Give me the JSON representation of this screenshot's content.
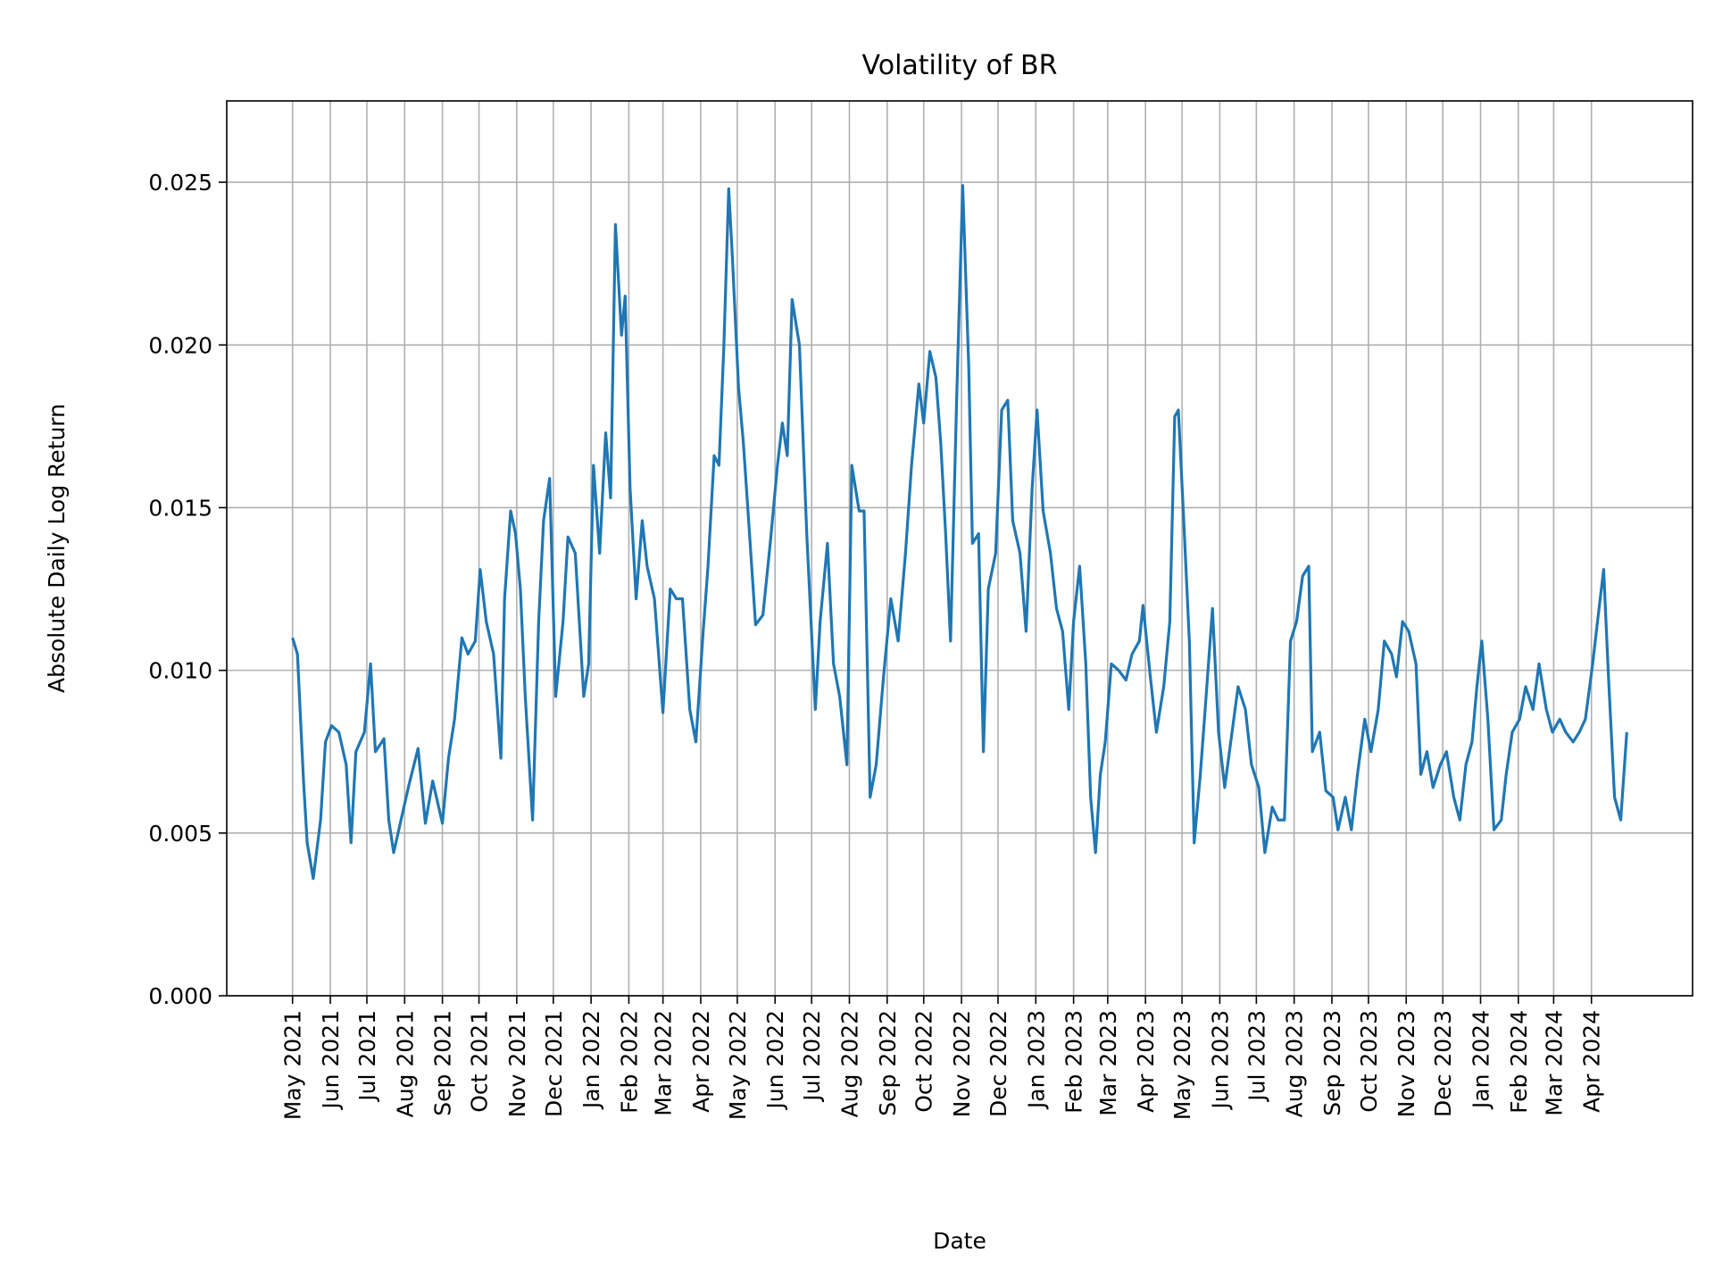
{
  "chart_data": {
    "type": "line",
    "title": "Volatility of BR",
    "xlabel": "Date",
    "ylabel": "Absolute Daily Log Return",
    "xlim": [
      "2021-03-08",
      "2024-06-23"
    ],
    "ylim": [
      0,
      0.0275
    ],
    "grid": true,
    "line_color": "#1f77b4",
    "yticks": [
      0.0,
      0.005,
      0.01,
      0.015,
      0.02,
      0.025
    ],
    "ytick_labels": [
      "0.000",
      "0.005",
      "0.010",
      "0.015",
      "0.020",
      "0.025"
    ],
    "xticks": [
      "2021-05-01",
      "2021-06-01",
      "2021-07-01",
      "2021-08-01",
      "2021-09-01",
      "2021-10-01",
      "2021-11-01",
      "2021-12-01",
      "2022-01-01",
      "2022-02-01",
      "2022-03-01",
      "2022-04-01",
      "2022-05-01",
      "2022-06-01",
      "2022-07-01",
      "2022-08-01",
      "2022-09-01",
      "2022-10-01",
      "2022-11-01",
      "2022-12-01",
      "2023-01-01",
      "2023-02-01",
      "2023-03-01",
      "2023-04-01",
      "2023-05-01",
      "2023-06-01",
      "2023-07-01",
      "2023-08-01",
      "2023-09-01",
      "2023-10-01",
      "2023-11-01",
      "2023-12-01",
      "2024-01-01",
      "2024-02-01",
      "2024-03-01",
      "2024-04-01"
    ],
    "xtick_labels": [
      "May 2021",
      "Jun 2021",
      "Jul 2021",
      "Aug 2021",
      "Sep 2021",
      "Oct 2021",
      "Nov 2021",
      "Dec 2021",
      "Jan 2022",
      "Feb 2022",
      "Mar 2022",
      "Apr 2022",
      "May 2022",
      "Jun 2022",
      "Jul 2022",
      "Aug 2022",
      "Sep 2022",
      "Oct 2022",
      "Nov 2022",
      "Dec 2022",
      "Jan 2023",
      "Feb 2023",
      "Mar 2023",
      "Apr 2023",
      "May 2023",
      "Jun 2023",
      "Jul 2023",
      "Aug 2023",
      "Sep 2023",
      "Oct 2023",
      "Nov 2023",
      "Dec 2023",
      "Jan 2024",
      "Feb 2024",
      "Mar 2024",
      "Apr 2024"
    ],
    "series": [
      {
        "points": [
          [
            "2021-05-01",
            0.011
          ],
          [
            "2021-05-05",
            0.0105
          ],
          [
            "2021-05-10",
            0.0066
          ],
          [
            "2021-05-13",
            0.0047
          ],
          [
            "2021-05-18",
            0.0036
          ],
          [
            "2021-05-24",
            0.0054
          ],
          [
            "2021-05-28",
            0.0078
          ],
          [
            "2021-06-02",
            0.0083
          ],
          [
            "2021-06-08",
            0.0081
          ],
          [
            "2021-06-14",
            0.0071
          ],
          [
            "2021-06-18",
            0.0047
          ],
          [
            "2021-06-22",
            0.0075
          ],
          [
            "2021-06-29",
            0.0081
          ],
          [
            "2021-07-04",
            0.0102
          ],
          [
            "2021-07-08",
            0.0075
          ],
          [
            "2021-07-15",
            0.0079
          ],
          [
            "2021-07-19",
            0.0054
          ],
          [
            "2021-07-23",
            0.0044
          ],
          [
            "2021-07-29",
            0.0054
          ],
          [
            "2021-08-04",
            0.0064
          ],
          [
            "2021-08-12",
            0.0076
          ],
          [
            "2021-08-18",
            0.0053
          ],
          [
            "2021-08-24",
            0.0066
          ],
          [
            "2021-09-01",
            0.0053
          ],
          [
            "2021-09-06",
            0.0073
          ],
          [
            "2021-09-11",
            0.0085
          ],
          [
            "2021-09-17",
            0.011
          ],
          [
            "2021-09-22",
            0.0105
          ],
          [
            "2021-09-28",
            0.0109
          ],
          [
            "2021-10-02",
            0.0131
          ],
          [
            "2021-10-07",
            0.0115
          ],
          [
            "2021-10-13",
            0.0105
          ],
          [
            "2021-10-19",
            0.0073
          ],
          [
            "2021-10-22",
            0.0122
          ],
          [
            "2021-10-27",
            0.0149
          ],
          [
            "2021-10-31",
            0.0142
          ],
          [
            "2021-11-04",
            0.0125
          ],
          [
            "2021-11-08",
            0.0092
          ],
          [
            "2021-11-14",
            0.0054
          ],
          [
            "2021-11-19",
            0.0115
          ],
          [
            "2021-11-23",
            0.0146
          ],
          [
            "2021-11-28",
            0.0159
          ],
          [
            "2021-12-03",
            0.0092
          ],
          [
            "2021-12-09",
            0.0115
          ],
          [
            "2021-12-13",
            0.0141
          ],
          [
            "2021-12-19",
            0.0136
          ],
          [
            "2021-12-26",
            0.0092
          ],
          [
            "2021-12-30",
            0.0102
          ],
          [
            "2022-01-03",
            0.0163
          ],
          [
            "2022-01-08",
            0.0136
          ],
          [
            "2022-01-13",
            0.0173
          ],
          [
            "2022-01-17",
            0.0153
          ],
          [
            "2022-01-21",
            0.0237
          ],
          [
            "2022-01-26",
            0.0203
          ],
          [
            "2022-01-29",
            0.0215
          ],
          [
            "2022-02-02",
            0.0156
          ],
          [
            "2022-02-07",
            0.0122
          ],
          [
            "2022-02-12",
            0.0146
          ],
          [
            "2022-02-16",
            0.0132
          ],
          [
            "2022-02-22",
            0.0122
          ],
          [
            "2022-03-01",
            0.0087
          ],
          [
            "2022-03-07",
            0.0125
          ],
          [
            "2022-03-12",
            0.0122
          ],
          [
            "2022-03-17",
            0.0122
          ],
          [
            "2022-03-23",
            0.0088
          ],
          [
            "2022-03-28",
            0.0078
          ],
          [
            "2022-04-03",
            0.0112
          ],
          [
            "2022-04-07",
            0.0132
          ],
          [
            "2022-04-12",
            0.0166
          ],
          [
            "2022-04-16",
            0.0163
          ],
          [
            "2022-04-20",
            0.02
          ],
          [
            "2022-04-24",
            0.0248
          ],
          [
            "2022-04-27",
            0.0227
          ],
          [
            "2022-05-02",
            0.0187
          ],
          [
            "2022-05-06",
            0.017
          ],
          [
            "2022-05-11",
            0.0142
          ],
          [
            "2022-05-16",
            0.0114
          ],
          [
            "2022-05-22",
            0.0117
          ],
          [
            "2022-05-28",
            0.0139
          ],
          [
            "2022-06-03",
            0.0163
          ],
          [
            "2022-06-07",
            0.0176
          ],
          [
            "2022-06-11",
            0.0166
          ],
          [
            "2022-06-15",
            0.0214
          ],
          [
            "2022-06-21",
            0.02
          ],
          [
            "2022-06-27",
            0.0142
          ],
          [
            "2022-07-04",
            0.0088
          ],
          [
            "2022-07-08",
            0.0115
          ],
          [
            "2022-07-14",
            0.0139
          ],
          [
            "2022-07-19",
            0.0102
          ],
          [
            "2022-07-24",
            0.0092
          ],
          [
            "2022-07-30",
            0.0071
          ],
          [
            "2022-08-03",
            0.0163
          ],
          [
            "2022-08-09",
            0.0149
          ],
          [
            "2022-08-13",
            0.0149
          ],
          [
            "2022-08-18",
            0.0061
          ],
          [
            "2022-08-23",
            0.0071
          ],
          [
            "2022-08-29",
            0.0098
          ],
          [
            "2022-09-04",
            0.0122
          ],
          [
            "2022-09-10",
            0.0109
          ],
          [
            "2022-09-16",
            0.0136
          ],
          [
            "2022-09-21",
            0.0163
          ],
          [
            "2022-09-27",
            0.0188
          ],
          [
            "2022-10-01",
            0.0176
          ],
          [
            "2022-10-06",
            0.0198
          ],
          [
            "2022-10-11",
            0.019
          ],
          [
            "2022-10-15",
            0.017
          ],
          [
            "2022-10-19",
            0.0142
          ],
          [
            "2022-10-23",
            0.0109
          ],
          [
            "2022-10-28",
            0.0183
          ],
          [
            "2022-11-02",
            0.0249
          ],
          [
            "2022-11-07",
            0.0193
          ],
          [
            "2022-11-10",
            0.0139
          ],
          [
            "2022-11-15",
            0.0142
          ],
          [
            "2022-11-19",
            0.0075
          ],
          [
            "2022-11-23",
            0.0125
          ],
          [
            "2022-11-29",
            0.0136
          ],
          [
            "2022-12-04",
            0.018
          ],
          [
            "2022-12-09",
            0.0183
          ],
          [
            "2022-12-13",
            0.0146
          ],
          [
            "2022-12-19",
            0.0136
          ],
          [
            "2022-12-24",
            0.0112
          ],
          [
            "2022-12-29",
            0.0156
          ],
          [
            "2023-01-02",
            0.018
          ],
          [
            "2023-01-07",
            0.0149
          ],
          [
            "2023-01-13",
            0.0136
          ],
          [
            "2023-01-18",
            0.0119
          ],
          [
            "2023-01-23",
            0.0112
          ],
          [
            "2023-01-28",
            0.0088
          ],
          [
            "2023-02-01",
            0.0115
          ],
          [
            "2023-02-06",
            0.0132
          ],
          [
            "2023-02-11",
            0.0102
          ],
          [
            "2023-02-15",
            0.0061
          ],
          [
            "2023-02-19",
            0.0044
          ],
          [
            "2023-02-23",
            0.0068
          ],
          [
            "2023-02-27",
            0.0078
          ],
          [
            "2023-03-04",
            0.0102
          ],
          [
            "2023-03-10",
            0.01
          ],
          [
            "2023-03-16",
            0.0097
          ],
          [
            "2023-03-21",
            0.0105
          ],
          [
            "2023-03-27",
            0.0109
          ],
          [
            "2023-03-30",
            0.012
          ],
          [
            "2023-04-05",
            0.0098
          ],
          [
            "2023-04-10",
            0.0081
          ],
          [
            "2023-04-16",
            0.0095
          ],
          [
            "2023-04-21",
            0.0115
          ],
          [
            "2023-04-25",
            0.0178
          ],
          [
            "2023-04-28",
            0.018
          ],
          [
            "2023-05-02",
            0.0149
          ],
          [
            "2023-05-07",
            0.0109
          ],
          [
            "2023-05-11",
            0.0047
          ],
          [
            "2023-05-16",
            0.0068
          ],
          [
            "2023-05-20",
            0.0088
          ],
          [
            "2023-05-26",
            0.0119
          ],
          [
            "2023-05-31",
            0.0081
          ],
          [
            "2023-06-05",
            0.0064
          ],
          [
            "2023-06-11",
            0.0081
          ],
          [
            "2023-06-16",
            0.0095
          ],
          [
            "2023-06-22",
            0.0088
          ],
          [
            "2023-06-27",
            0.0071
          ],
          [
            "2023-07-03",
            0.0064
          ],
          [
            "2023-07-08",
            0.0044
          ],
          [
            "2023-07-14",
            0.0058
          ],
          [
            "2023-07-19",
            0.0054
          ],
          [
            "2023-07-24",
            0.0054
          ],
          [
            "2023-07-29",
            0.0109
          ],
          [
            "2023-08-03",
            0.0115
          ],
          [
            "2023-08-08",
            0.0129
          ],
          [
            "2023-08-13",
            0.0132
          ],
          [
            "2023-08-16",
            0.0075
          ],
          [
            "2023-08-22",
            0.0081
          ],
          [
            "2023-08-27",
            0.0063
          ],
          [
            "2023-09-02",
            0.0061
          ],
          [
            "2023-09-06",
            0.0051
          ],
          [
            "2023-09-12",
            0.0061
          ],
          [
            "2023-09-17",
            0.0051
          ],
          [
            "2023-09-22",
            0.0068
          ],
          [
            "2023-09-28",
            0.0085
          ],
          [
            "2023-10-03",
            0.0075
          ],
          [
            "2023-10-09",
            0.0088
          ],
          [
            "2023-10-14",
            0.0109
          ],
          [
            "2023-10-20",
            0.0105
          ],
          [
            "2023-10-24",
            0.0098
          ],
          [
            "2023-10-29",
            0.0115
          ],
          [
            "2023-11-03",
            0.0112
          ],
          [
            "2023-11-09",
            0.0102
          ],
          [
            "2023-11-13",
            0.0068
          ],
          [
            "2023-11-18",
            0.0075
          ],
          [
            "2023-11-23",
            0.0064
          ],
          [
            "2023-11-29",
            0.0071
          ],
          [
            "2023-12-04",
            0.0075
          ],
          [
            "2023-12-10",
            0.0061
          ],
          [
            "2023-12-15",
            0.0054
          ],
          [
            "2023-12-20",
            0.0071
          ],
          [
            "2023-12-25",
            0.0078
          ],
          [
            "2023-12-29",
            0.0095
          ],
          [
            "2024-01-02",
            0.0109
          ],
          [
            "2024-01-07",
            0.0085
          ],
          [
            "2024-01-12",
            0.0051
          ],
          [
            "2024-01-18",
            0.0054
          ],
          [
            "2024-01-22",
            0.0068
          ],
          [
            "2024-01-27",
            0.0081
          ],
          [
            "2024-02-02",
            0.0085
          ],
          [
            "2024-02-07",
            0.0095
          ],
          [
            "2024-02-13",
            0.0088
          ],
          [
            "2024-02-18",
            0.0102
          ],
          [
            "2024-02-24",
            0.0088
          ],
          [
            "2024-02-29",
            0.0081
          ],
          [
            "2024-03-06",
            0.0085
          ],
          [
            "2024-03-11",
            0.0081
          ],
          [
            "2024-03-17",
            0.0078
          ],
          [
            "2024-03-22",
            0.0081
          ],
          [
            "2024-03-27",
            0.0085
          ],
          [
            "2024-04-02",
            0.0102
          ],
          [
            "2024-04-06",
            0.0115
          ],
          [
            "2024-04-11",
            0.0131
          ],
          [
            "2024-04-15",
            0.0098
          ],
          [
            "2024-04-20",
            0.0061
          ],
          [
            "2024-04-25",
            0.0054
          ],
          [
            "2024-04-30",
            0.0081
          ]
        ]
      }
    ]
  }
}
